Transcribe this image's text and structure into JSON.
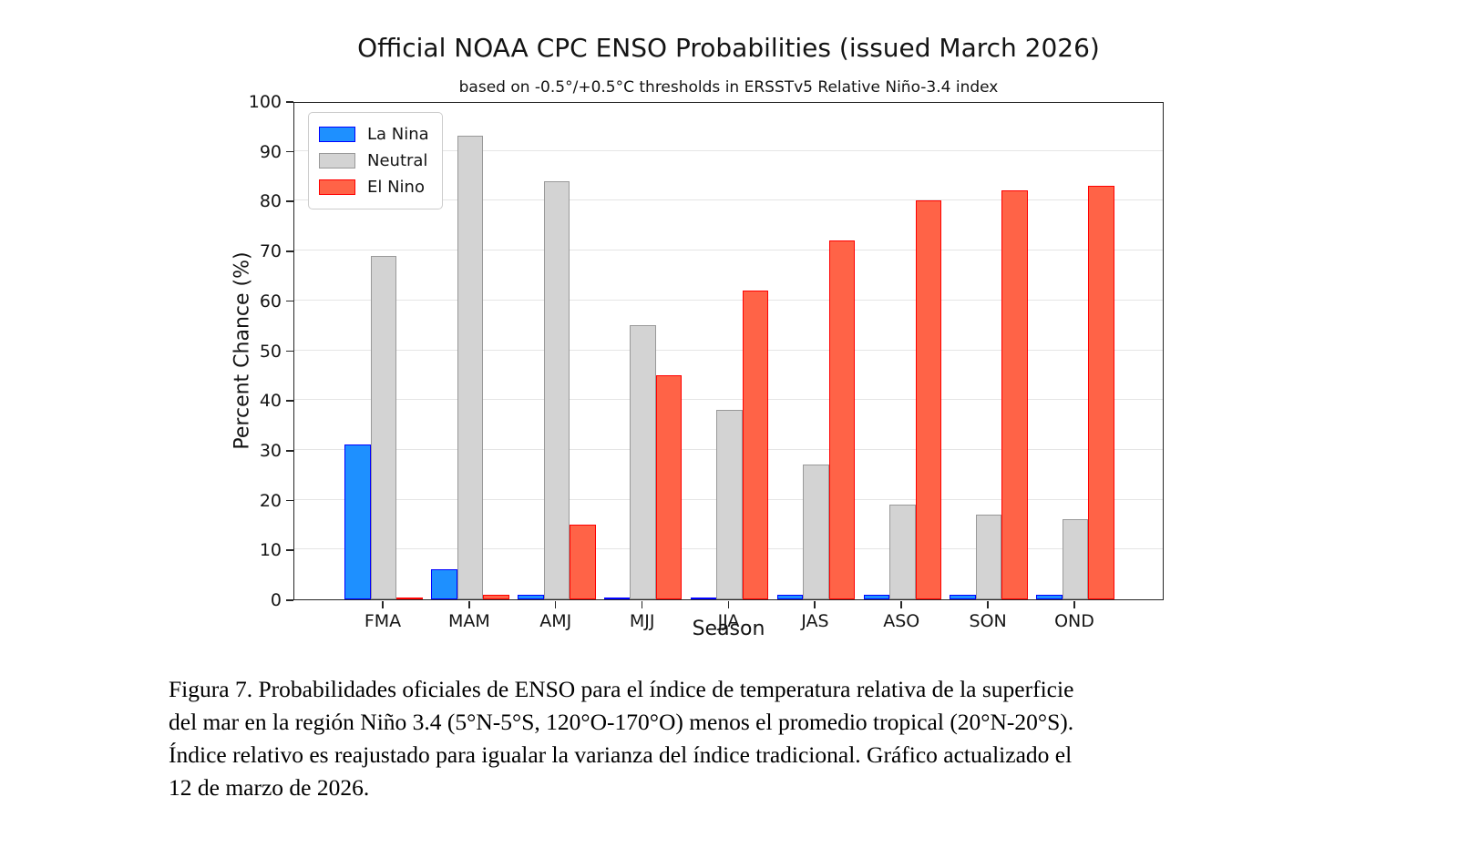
{
  "title": "Official NOAA CPC ENSO Probabilities (issued March 2026)",
  "subtitle": "based on -0.5°/+0.5°C thresholds in ERSSTv5 Relative Niño-3.4 index",
  "chart_data": {
    "type": "bar",
    "categories": [
      "FMA",
      "MAM",
      "AMJ",
      "MJJ",
      "JJA",
      "JAS",
      "ASO",
      "SON",
      "OND"
    ],
    "series": [
      {
        "name": "La Nina",
        "values": [
          31,
          6,
          1,
          0,
          0,
          1,
          1,
          1,
          1
        ],
        "fill": "#1E90FF",
        "edge": "#0000FF"
      },
      {
        "name": "Neutral",
        "values": [
          69,
          93,
          84,
          55,
          38,
          27,
          19,
          17,
          16
        ],
        "fill": "#D3D3D3",
        "edge": "#999999"
      },
      {
        "name": "El Nino",
        "values": [
          0,
          1,
          15,
          45,
          62,
          72,
          80,
          82,
          83
        ],
        "fill": "#FF6347",
        "edge": "#FF0000"
      }
    ],
    "xlabel": "Season",
    "ylabel": "Percent Chance (%)",
    "ylim": [
      0,
      100
    ],
    "yticks": [
      0,
      10,
      20,
      30,
      40,
      50,
      60,
      70,
      80,
      90,
      100
    ],
    "grid": true,
    "legend_position": "upper left",
    "colors": {
      "gridline": "#e5e5e5",
      "spine": "#262626"
    }
  },
  "caption": {
    "lines": [
      "Figura 7. Probabilidades oficiales de ENSO para el índice de temperatura relativa de la superficie",
      "del mar en la región Niño 3.4 (5°N-5°S, 120°O-170°O) menos el promedio tropical (20°N-20°S).",
      "Índice relativo es reajustado para igualar la varianza del índice tradicional. Gráfico actualizado el",
      "12 de marzo de 2026."
    ]
  }
}
